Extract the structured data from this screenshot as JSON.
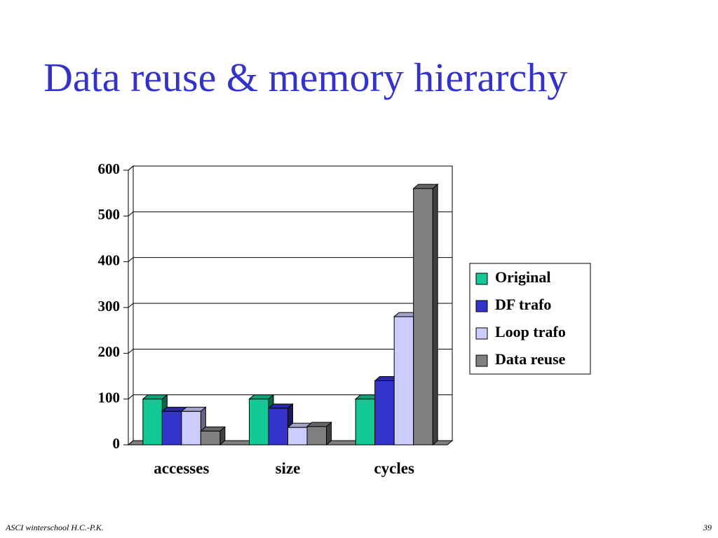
{
  "chart_data": {
    "type": "bar3d",
    "title": "Data reuse & memory hierarchy",
    "categories": [
      "accesses",
      "size",
      "cycles"
    ],
    "series": [
      {
        "name": "Original",
        "color": "#14c896",
        "values": [
          100,
          100,
          100
        ]
      },
      {
        "name": "DF trafo",
        "color": "#3333cc",
        "values": [
          73,
          80,
          140
        ]
      },
      {
        "name": "Loop trafo",
        "color": "#ccccff",
        "values": [
          73,
          38,
          280
        ]
      },
      {
        "name": "Data reuse",
        "color": "#808080",
        "values": [
          30,
          40,
          560
        ]
      }
    ],
    "ylim": [
      0,
      600
    ],
    "yticks": [
      0,
      100,
      200,
      300,
      400,
      500,
      600
    ],
    "grid": true,
    "legend": "right"
  },
  "footer": {
    "left": "ASCI winterschool  H.C.-P.K.",
    "page": "39"
  }
}
